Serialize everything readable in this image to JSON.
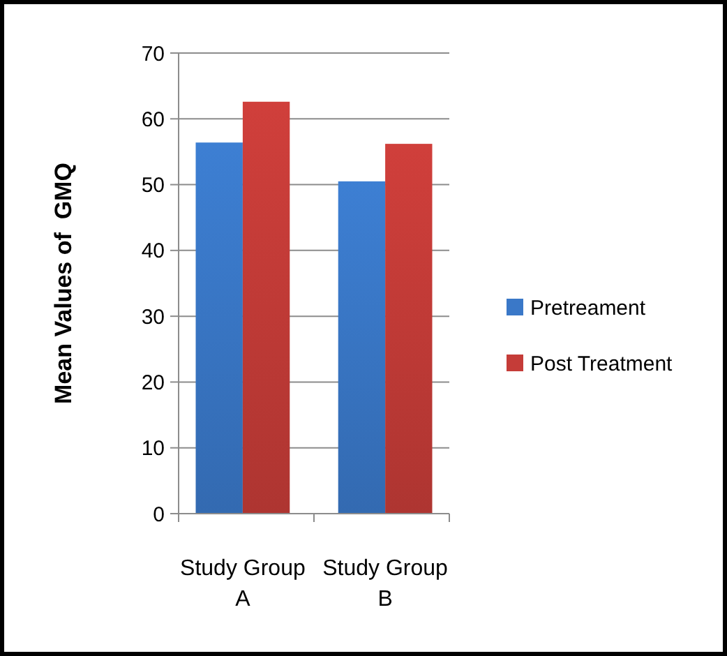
{
  "chart_data": {
    "type": "bar",
    "ylabel": "Mean Values of  GMQ",
    "categories": [
      "Study Group A",
      "Study Group B"
    ],
    "series": [
      {
        "name": "Pretreament",
        "color": "#3a78c8",
        "values": [
          56.4,
          50.5
        ]
      },
      {
        "name": "Post Treatment",
        "color": "#c53c38",
        "values": [
          62.6,
          56.2
        ]
      }
    ],
    "ylim": [
      0,
      70
    ],
    "yticks": [
      0,
      10,
      20,
      30,
      40,
      50,
      60,
      70
    ],
    "grid": "y",
    "legend": "right"
  }
}
